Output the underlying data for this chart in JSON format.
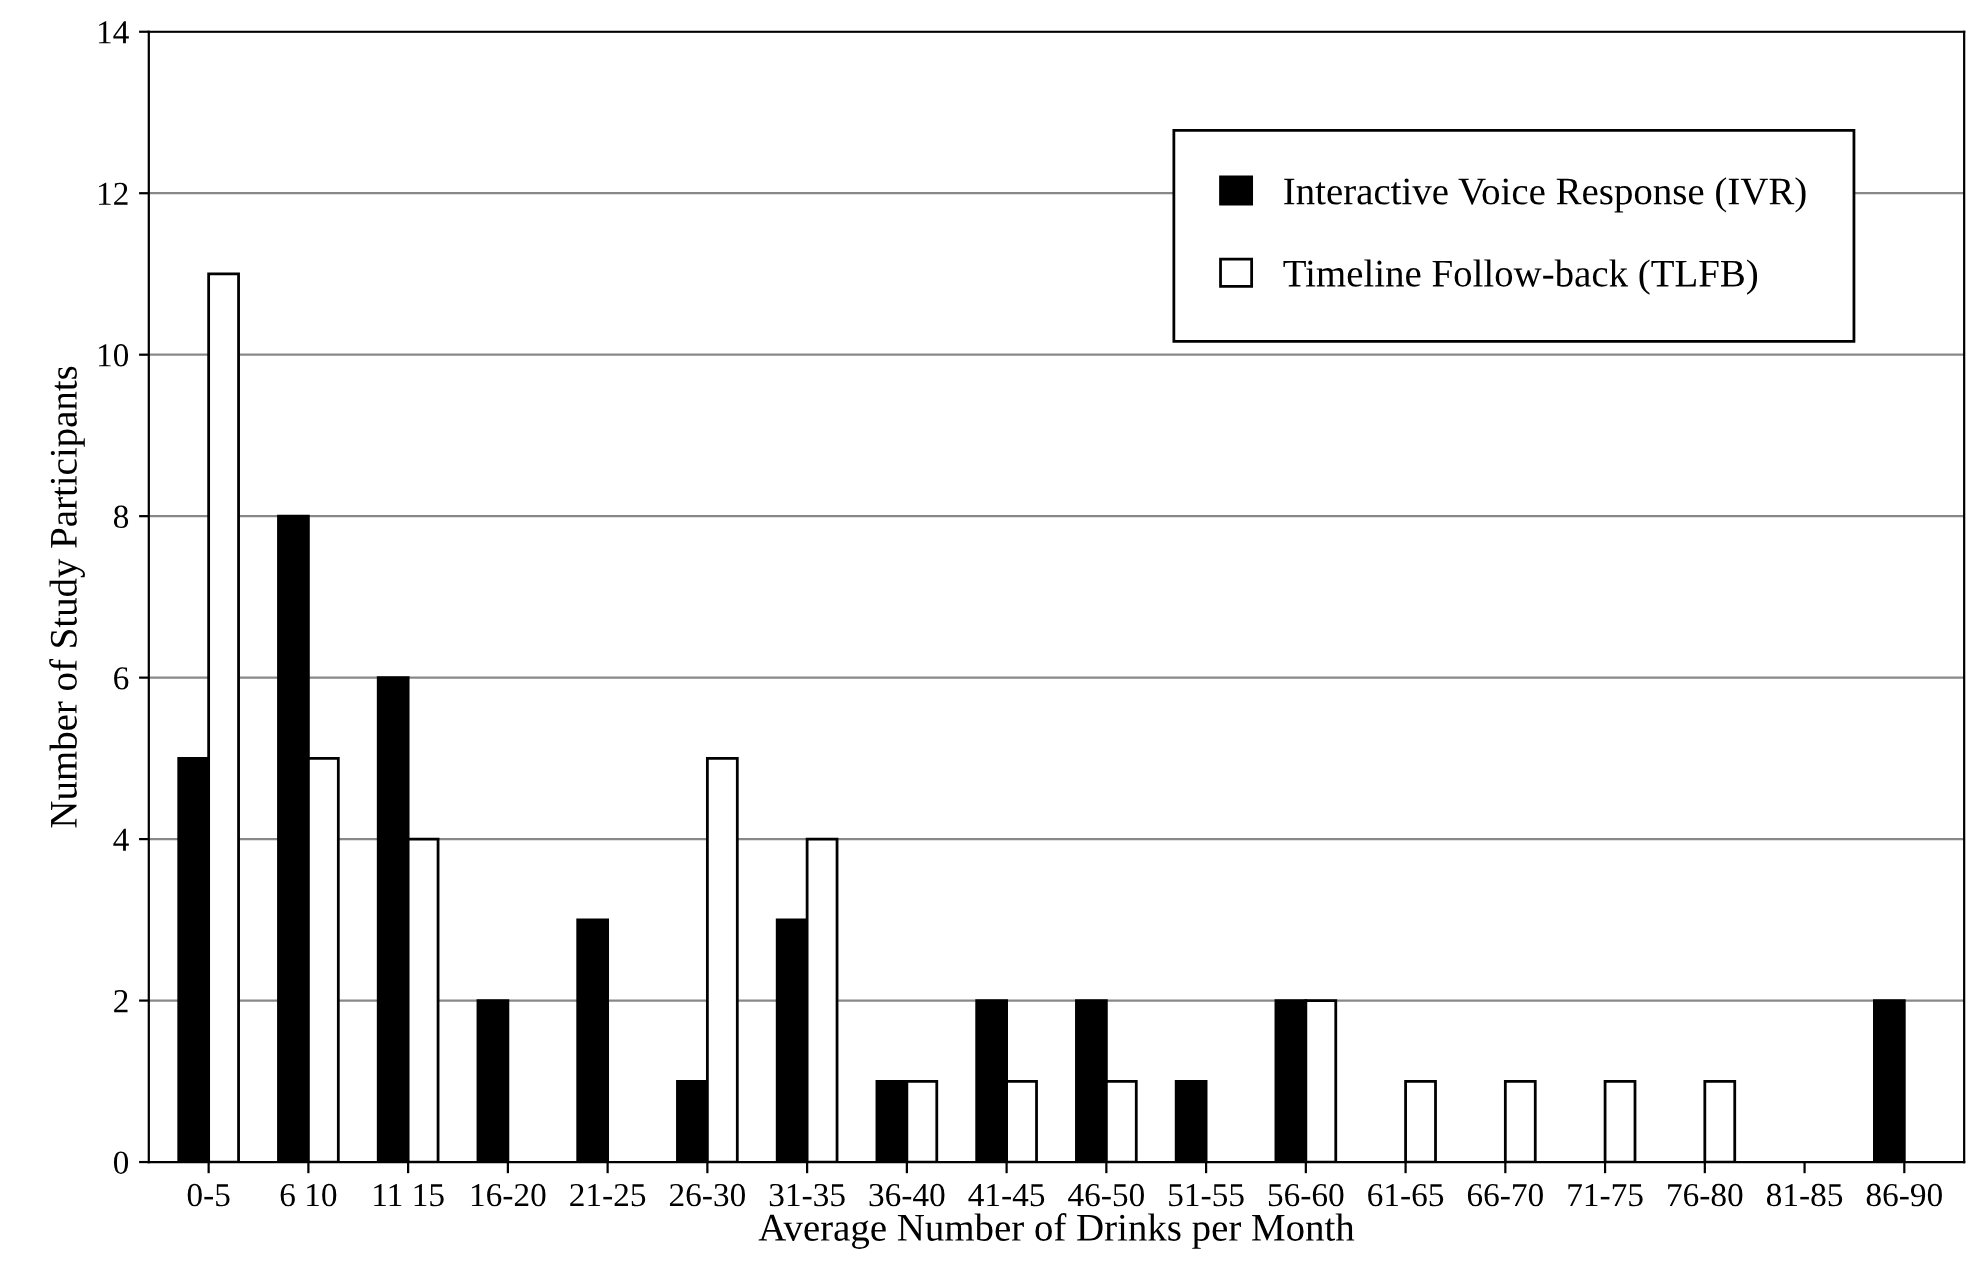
{
  "chart_data": {
    "type": "bar",
    "xlabel": "Average Number of Drinks per Month",
    "ylabel": "Number of Study Participants",
    "categories": [
      "0-5",
      "6 10",
      "11 15",
      "16-20",
      "21-25",
      "26-30",
      "31-35",
      "36-40",
      "41-45",
      "46-50",
      "51-55",
      "56-60",
      "61-65",
      "66-70",
      "71-75",
      "76-80",
      "81-85",
      "86-90"
    ],
    "series": [
      {
        "name": "Interactive Voice Response (IVR)",
        "color": "#000000",
        "values": [
          5,
          8,
          6,
          2,
          3,
          1,
          3,
          1,
          2,
          2,
          1,
          2,
          0,
          0,
          0,
          0,
          0,
          2
        ]
      },
      {
        "name": "Timeline Follow-back (TLFB)",
        "color": "#ffffff",
        "values": [
          11,
          5,
          4,
          0,
          0,
          5,
          4,
          1,
          1,
          1,
          0,
          2,
          1,
          1,
          1,
          1,
          0,
          0
        ]
      }
    ],
    "ylim": [
      0,
      14
    ],
    "yticks": [
      0,
      2,
      4,
      6,
      8,
      10,
      12,
      14
    ],
    "grid": "y",
    "legend": "top right"
  }
}
